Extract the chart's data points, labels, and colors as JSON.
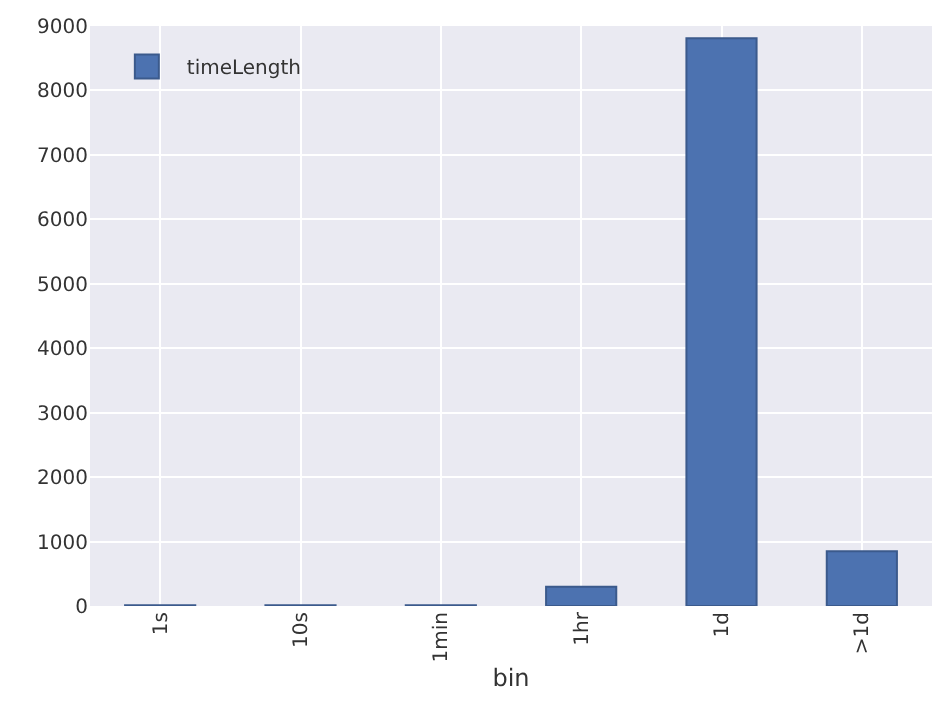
{
  "chart_data": {
    "type": "bar",
    "xlabel": "bin",
    "categories": [
      "1s",
      "10s",
      "1min",
      "1hr",
      "1d",
      ">1d"
    ],
    "series": [
      {
        "name": "timeLength",
        "color": "#4c72b0",
        "values": [
          10,
          10,
          10,
          300,
          8810,
          850
        ]
      }
    ],
    "ylim": [
      0,
      9000
    ],
    "yticks": [
      0,
      1000,
      2000,
      3000,
      4000,
      5000,
      6000,
      7000,
      8000,
      9000
    ],
    "grid": true,
    "legend": "top left"
  }
}
